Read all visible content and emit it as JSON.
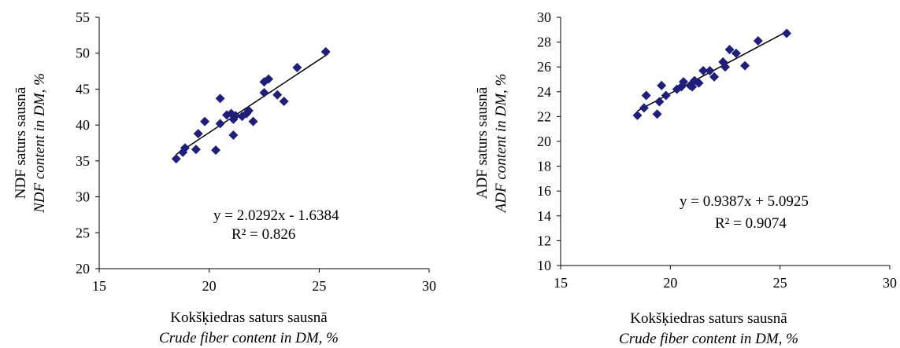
{
  "chart_data": [
    {
      "type": "scatter",
      "xlabel": "Kokšķiedras saturs sausnā",
      "xlabel_en": "Crude fiber content in DM, %",
      "ylabel": "NDF saturs sausnā",
      "ylabel_en": "NDF content in DM, %",
      "xlim": [
        15,
        30
      ],
      "ylim": [
        20,
        55
      ],
      "xticks": [
        15,
        20,
        25,
        30
      ],
      "yticks": [
        20,
        25,
        30,
        35,
        40,
        45,
        50,
        55
      ],
      "marker_color": "#1f1f7a",
      "line_color": "#000000",
      "equation": "y = 2.0292x - 1.6384",
      "r2": "R² = 0.826",
      "trendline": {
        "slope": 2.0292,
        "intercept": -1.6384,
        "x_range": [
          18.5,
          25.4
        ]
      },
      "points": [
        {
          "x": 18.5,
          "y": 35.3
        },
        {
          "x": 18.8,
          "y": 36.2
        },
        {
          "x": 18.9,
          "y": 36.8
        },
        {
          "x": 19.4,
          "y": 36.6
        },
        {
          "x": 19.5,
          "y": 38.8
        },
        {
          "x": 19.8,
          "y": 40.5
        },
        {
          "x": 20.3,
          "y": 36.5
        },
        {
          "x": 20.5,
          "y": 40.2
        },
        {
          "x": 20.5,
          "y": 43.7
        },
        {
          "x": 20.8,
          "y": 41.4
        },
        {
          "x": 21.0,
          "y": 41.6
        },
        {
          "x": 21.1,
          "y": 40.8
        },
        {
          "x": 21.1,
          "y": 38.6
        },
        {
          "x": 21.2,
          "y": 41.3
        },
        {
          "x": 21.5,
          "y": 41.2
        },
        {
          "x": 21.7,
          "y": 41.6
        },
        {
          "x": 21.8,
          "y": 42.0
        },
        {
          "x": 22.0,
          "y": 40.5
        },
        {
          "x": 22.5,
          "y": 44.5
        },
        {
          "x": 22.5,
          "y": 46.0
        },
        {
          "x": 22.7,
          "y": 46.4
        },
        {
          "x": 23.1,
          "y": 44.2
        },
        {
          "x": 23.4,
          "y": 43.3
        },
        {
          "x": 24.0,
          "y": 48.0
        },
        {
          "x": 25.3,
          "y": 50.2
        }
      ]
    },
    {
      "type": "scatter",
      "xlabel": "Kokšķiedras saturs sausnā",
      "xlabel_en": "Crude fiber content in DM, %",
      "ylabel": "ADF saturs sausnā",
      "ylabel_en": "ADF content in DM, %",
      "xlim": [
        15,
        30
      ],
      "ylim": [
        10,
        30
      ],
      "xticks": [
        15,
        20,
        25,
        30
      ],
      "yticks": [
        10,
        12,
        14,
        16,
        18,
        20,
        22,
        24,
        26,
        28,
        30
      ],
      "marker_color": "#1f1f7a",
      "line_color": "#000000",
      "equation": "y = 0.9387x + 5.0925",
      "r2": "R² = 0.9074",
      "trendline": {
        "slope": 0.9387,
        "intercept": 5.0925,
        "x_range": [
          18.5,
          25.4
        ]
      },
      "points": [
        {
          "x": 18.5,
          "y": 22.1
        },
        {
          "x": 18.8,
          "y": 22.7
        },
        {
          "x": 18.9,
          "y": 23.7
        },
        {
          "x": 19.4,
          "y": 22.2
        },
        {
          "x": 19.5,
          "y": 23.2
        },
        {
          "x": 19.6,
          "y": 24.5
        },
        {
          "x": 19.8,
          "y": 23.7
        },
        {
          "x": 20.3,
          "y": 24.2
        },
        {
          "x": 20.5,
          "y": 24.4
        },
        {
          "x": 20.6,
          "y": 24.8
        },
        {
          "x": 20.9,
          "y": 24.5
        },
        {
          "x": 21.0,
          "y": 24.4
        },
        {
          "x": 21.1,
          "y": 24.9
        },
        {
          "x": 21.3,
          "y": 24.7
        },
        {
          "x": 21.5,
          "y": 25.7
        },
        {
          "x": 21.8,
          "y": 25.7
        },
        {
          "x": 22.0,
          "y": 25.2
        },
        {
          "x": 22.4,
          "y": 26.4
        },
        {
          "x": 22.5,
          "y": 26.0
        },
        {
          "x": 22.7,
          "y": 27.4
        },
        {
          "x": 23.0,
          "y": 27.1
        },
        {
          "x": 23.4,
          "y": 26.1
        },
        {
          "x": 24.0,
          "y": 28.1
        },
        {
          "x": 25.3,
          "y": 28.7
        }
      ]
    }
  ]
}
